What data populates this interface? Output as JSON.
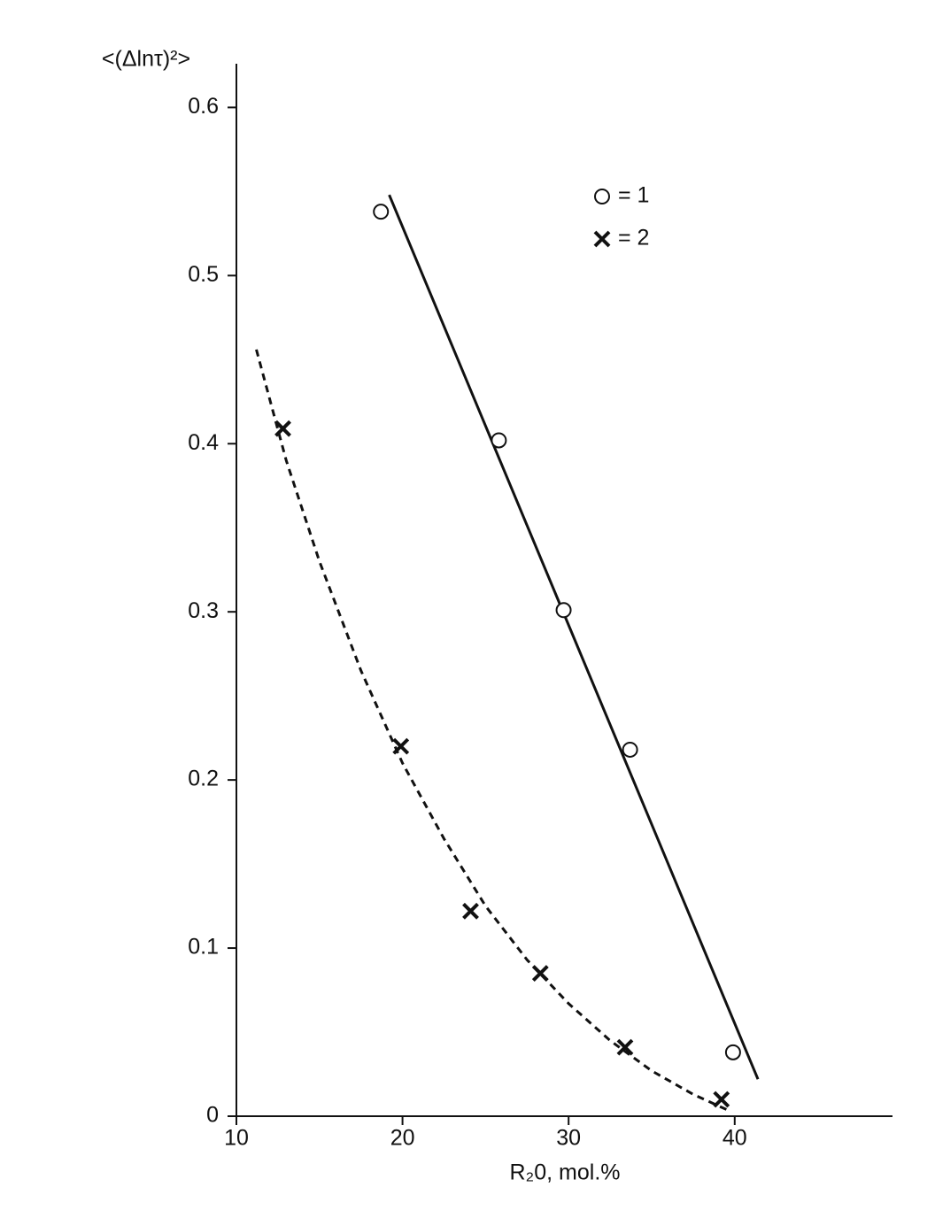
{
  "chart_data": {
    "type": "scatter",
    "x_label": "R₂0, mol.%",
    "y_label": "<(Δlnτ)²>",
    "xlim": [
      10,
      49.5
    ],
    "ylim": [
      0,
      0.626
    ],
    "xticks": [
      10,
      20,
      30,
      40
    ],
    "yticks": [
      0,
      0.1,
      0.2,
      0.3,
      0.4,
      0.5,
      0.6
    ],
    "legend": "upper right",
    "series": [
      {
        "name": "= 1",
        "marker": "circle",
        "color": "#111",
        "x": [
          18.7,
          25.8,
          29.7,
          33.7,
          39.9
        ],
        "values": [
          0.538,
          0.402,
          0.301,
          0.218,
          0.038
        ]
      },
      {
        "name": "= 2",
        "marker": "cross",
        "color": "#111",
        "x": [
          12.8,
          19.9,
          24.1,
          28.3,
          33.4,
          39.2
        ],
        "values": [
          0.409,
          0.22,
          0.122,
          0.085,
          0.041,
          0.01
        ]
      }
    ],
    "fits": [
      {
        "style": "solid",
        "x": [
          19.2,
          41.4
        ],
        "values": [
          0.548,
          0.022
        ]
      },
      {
        "style": "dashed",
        "x": [
          11.2,
          13,
          15,
          17.5,
          20,
          22.5,
          25,
          27.5,
          30,
          32.5,
          35,
          37.5,
          39.5
        ],
        "values": [
          0.456,
          0.39,
          0.33,
          0.265,
          0.21,
          0.165,
          0.125,
          0.093,
          0.067,
          0.045,
          0.027,
          0.013,
          0.004
        ]
      }
    ]
  }
}
